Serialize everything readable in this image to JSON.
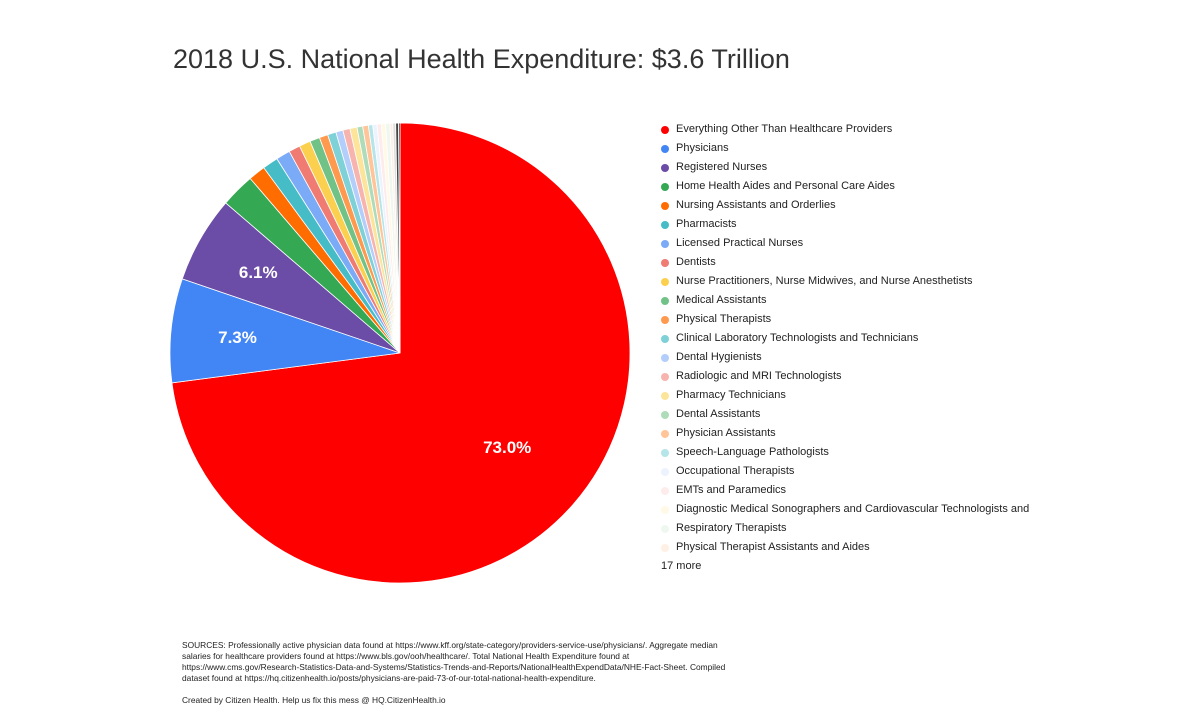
{
  "chart_data": {
    "type": "pie",
    "title": "2018 U.S. National Health Expenditure: $3.6 Trillion",
    "legend_position": "right",
    "slices": [
      {
        "label": "Everything Other Than Healthcare Providers",
        "value": 73.0,
        "color": "#ff0000",
        "data_label": "73.0%"
      },
      {
        "label": "Physicians",
        "value": 7.3,
        "color": "#4285f4",
        "data_label": "7.3%"
      },
      {
        "label": "Registered Nurses",
        "value": 6.1,
        "color": "#6b4ca6",
        "data_label": "6.1%"
      },
      {
        "label": "Home Health Aides and Personal Care Aides",
        "value": 2.4,
        "color": "#34a853"
      },
      {
        "label": "Nursing Assistants and Orderlies",
        "value": 1.2,
        "color": "#ff6d01"
      },
      {
        "label": "Pharmacists",
        "value": 1.1,
        "color": "#46bdc6"
      },
      {
        "label": "Licensed Practical Nurses",
        "value": 1.0,
        "color": "#7baaf7"
      },
      {
        "label": "Dentists",
        "value": 0.8,
        "color": "#f07b72"
      },
      {
        "label": "Nurse Practitioners, Nurse Midwives, and Nurse Anesthetists",
        "value": 0.8,
        "color": "#fcd04f"
      },
      {
        "label": "Medical Assistants",
        "value": 0.7,
        "color": "#71c287"
      },
      {
        "label": "Physical Therapists",
        "value": 0.6,
        "color": "#ff994d"
      },
      {
        "label": "Clinical Laboratory Technologists and Technicians",
        "value": 0.6,
        "color": "#7ed1d7"
      },
      {
        "label": "Dental Hygienists",
        "value": 0.5,
        "color": "#b3cefb"
      },
      {
        "label": "Radiologic and MRI Technologists",
        "value": 0.5,
        "color": "#f7b4ae"
      },
      {
        "label": "Pharmacy Technicians",
        "value": 0.5,
        "color": "#fde49b"
      },
      {
        "label": "Dental Assistants",
        "value": 0.4,
        "color": "#aedcba"
      },
      {
        "label": "Physician Assistants",
        "value": 0.4,
        "color": "#ffc599"
      },
      {
        "label": "Speech-Language Pathologists",
        "value": 0.3,
        "color": "#b5e5e8"
      },
      {
        "label": "Occupational Therapists",
        "value": 0.3,
        "color": "#ecf3fe"
      },
      {
        "label": "EMTs and Paramedics",
        "value": 0.3,
        "color": "#fdeceb"
      },
      {
        "label": "Diagnostic Medical Sonographers and Cardiovascular Technologists and",
        "value": 0.3,
        "color": "#fff9e6"
      },
      {
        "label": "Respiratory Therapists",
        "value": 0.3,
        "color": "#eef7f0"
      },
      {
        "label": "Physical Therapist Assistants and Aides",
        "value": 0.2,
        "color": "#fff0e5"
      },
      {
        "label": "",
        "value": 0.2,
        "color": "#dddddd"
      },
      {
        "label": "",
        "value": 0.2,
        "color": "#444444"
      },
      {
        "label": "",
        "value": 0.1,
        "color": "#111111"
      }
    ],
    "more_label": "17 more"
  },
  "footer": {
    "sources": "SOURCES: Professionally active physician data found at https://www.kff.org/state-category/providers-service-use/physicians/. Aggregate median salaries for healthcare providers found at https://www.bls.gov/ooh/healthcare/. Total National Health Expenditure found at https://www.cms.gov/Research-Statistics-Data-and-Systems/Statistics-Trends-and-Reports/NationalHealthExpendData/NHE-Fact-Sheet. Compiled dataset found at https://hq.citizenhealth.io/posts/physicians-are-paid-73-of-our-total-national-health-expenditure.",
    "credit": "Created by Citizen Health. Help us fix this mess @ HQ.CitizenHealth.io"
  }
}
